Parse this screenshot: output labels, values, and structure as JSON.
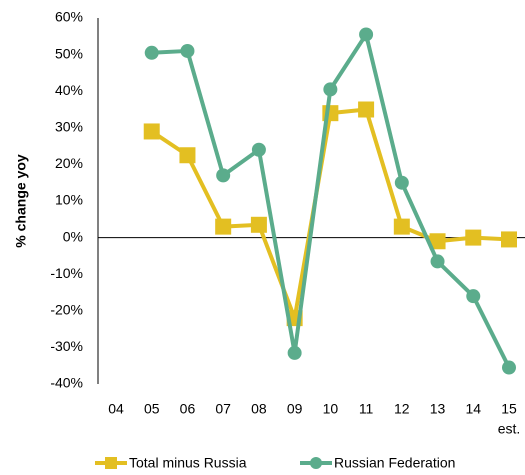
{
  "chart_data": {
    "type": "line",
    "y_label": "% change yoy",
    "categories": [
      "04",
      "05",
      "06",
      "07",
      "08",
      "09",
      "10",
      "11",
      "12",
      "13",
      "14",
      "15"
    ],
    "x_annotation": "est.",
    "series": [
      {
        "name": "Total minus Russia",
        "color": "#e3bf22",
        "marker": "square",
        "values": [
          null,
          29,
          22.5,
          3,
          3.5,
          -22,
          34,
          35,
          3,
          -1,
          0,
          -0.5
        ]
      },
      {
        "name": "Russian Federation",
        "color": "#5bac8c",
        "marker": "circle",
        "values": [
          null,
          50.5,
          51,
          17,
          24,
          -31.5,
          40.5,
          55.5,
          15,
          -6.5,
          -16,
          -35.5
        ]
      }
    ],
    "ylim": [
      -40,
      60
    ],
    "yticks": [
      {
        "value": -40,
        "label": "-40%"
      },
      {
        "value": -30,
        "label": "-30%"
      },
      {
        "value": -20,
        "label": "-20%"
      },
      {
        "value": -10,
        "label": "-10%"
      },
      {
        "value": 0,
        "label": "0%"
      },
      {
        "value": 10,
        "label": "10%"
      },
      {
        "value": 20,
        "label": "20%"
      },
      {
        "value": 30,
        "label": "30%"
      },
      {
        "value": 40,
        "label": "40%"
      },
      {
        "value": 50,
        "label": "50%"
      },
      {
        "value": 60,
        "label": "60%"
      }
    ],
    "grid": false,
    "legend": "bottom"
  }
}
